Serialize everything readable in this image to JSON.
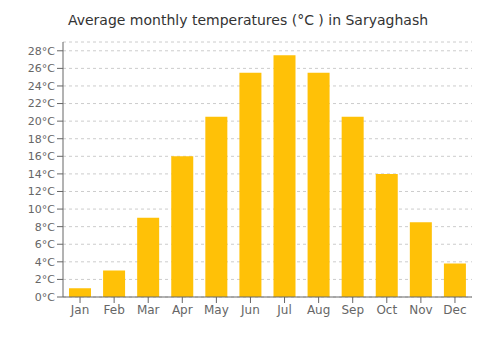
{
  "chart_data": {
    "type": "bar",
    "title": "Average monthly temperatures (°C ) in Saryaghash",
    "categories": [
      "Jan",
      "Feb",
      "Mar",
      "Apr",
      "May",
      "Jun",
      "Jul",
      "Aug",
      "Sep",
      "Oct",
      "Nov",
      "Dec"
    ],
    "values": [
      1,
      3,
      9,
      16,
      20.5,
      25.5,
      27.5,
      25.5,
      20.5,
      14,
      8.5,
      3.8
    ],
    "color": "#FFC107",
    "ylim": [
      0,
      29
    ],
    "yticks": [
      {
        "value": 0,
        "label": "0°C"
      },
      {
        "value": 2,
        "label": "2°C"
      },
      {
        "value": 4,
        "label": "4°C"
      },
      {
        "value": 6,
        "label": "6°C"
      },
      {
        "value": 8,
        "label": "8°C"
      },
      {
        "value": 10,
        "label": "10°C"
      },
      {
        "value": 12,
        "label": "12°C"
      },
      {
        "value": 14,
        "label": "14°C"
      },
      {
        "value": 16,
        "label": "16°C"
      },
      {
        "value": 18,
        "label": "18°C"
      },
      {
        "value": 20,
        "label": "20°C"
      },
      {
        "value": 22,
        "label": "22°C"
      },
      {
        "value": 24,
        "label": "24°C"
      },
      {
        "value": 26,
        "label": "26°C"
      },
      {
        "value": 28,
        "label": "28°C"
      }
    ],
    "grid": true
  }
}
